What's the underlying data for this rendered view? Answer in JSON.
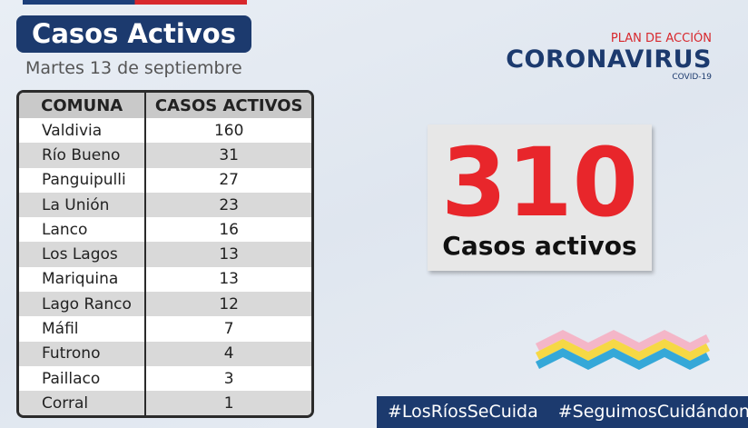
{
  "header": {
    "title": "Casos Activos",
    "date": "Martes 13 de septiembre"
  },
  "logo": {
    "top": "PLAN DE ACCIÓN",
    "main": "CORONAVIRUS",
    "sub": "COVID-19"
  },
  "table": {
    "columns": [
      "COMUNA",
      "CASOS ACTIVOS"
    ],
    "rows": [
      [
        "Valdivia",
        160
      ],
      [
        "Río Bueno",
        31
      ],
      [
        "Panguipulli",
        27
      ],
      [
        "La Unión",
        23
      ],
      [
        "Lanco",
        16
      ],
      [
        "Los Lagos",
        13
      ],
      [
        "Mariquina",
        13
      ],
      [
        "Lago Ranco",
        12
      ],
      [
        "Máfil",
        7
      ],
      [
        "Futrono",
        4
      ],
      [
        "Paillaco",
        3
      ],
      [
        "Corral",
        1
      ]
    ]
  },
  "total": {
    "value": 310,
    "label": "Casos activos"
  },
  "hashtags": [
    "#LosRíosSeCuida",
    "#SeguimosCuidándonos"
  ]
}
